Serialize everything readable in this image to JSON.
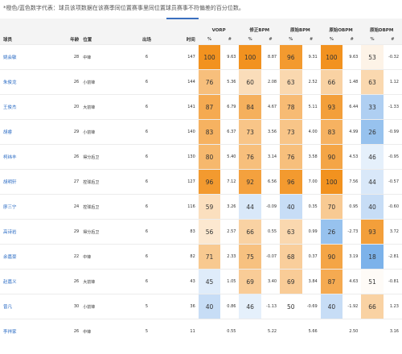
{
  "note": "*橙色/蓝色数字代表：球员该项数据在该赛季同位置赛事里同位置球员赛事不符偏差的百分位数。",
  "headers": {
    "player": "球员",
    "age": "年龄",
    "position": "位置",
    "games": "出场",
    "minutes": "时间",
    "vorp": "VORP",
    "bpm": "修正BPM",
    "obpm": "原始BPM",
    "dbpm": "原始OBPM",
    "raw_dbpm": "原始DBPM",
    "pct": "%",
    "num": "#"
  },
  "colors": {
    "orange_strong": "#f2921f",
    "orange_light": "#fbe2c4",
    "blue_strong": "#3f8fe0",
    "blue_light": "#cfe2f7",
    "header_accent": "#3a6fbf",
    "name_link": "#2a6bc4"
  },
  "rows": [
    {
      "name": "姚会敏",
      "age": "28",
      "pos": "中锋",
      "g": "6",
      "min": "147",
      "vorp_p": "100",
      "vorp_v": "9.63",
      "bpm_p": "100",
      "bpm_v": "8.87",
      "obpm_p": "96",
      "obpm_v": "9.31",
      "dbpm_p": "100",
      "dbpm_v": "9.63",
      "rd_p": "53",
      "rd_v": "-0.32"
    },
    {
      "name": "朱俊龙",
      "age": "26",
      "pos": "小前锋",
      "g": "6",
      "min": "144",
      "vorp_p": "76",
      "vorp_v": "5.36",
      "bpm_p": "60",
      "bpm_v": "2.08",
      "obpm_p": "63",
      "obpm_v": "2.52",
      "dbpm_p": "66",
      "dbpm_v": "1.48",
      "rd_p": "63",
      "rd_v": "1.12"
    },
    {
      "name": "王俊杰",
      "age": "20",
      "pos": "大前锋",
      "g": "6",
      "min": "141",
      "vorp_p": "87",
      "vorp_v": "6.79",
      "bpm_p": "84",
      "bpm_v": "4.67",
      "obpm_p": "78",
      "obpm_v": "5.11",
      "dbpm_p": "93",
      "dbpm_v": "6.44",
      "rd_p": "33",
      "rd_v": "-1.33"
    },
    {
      "name": "胡睿",
      "age": "29",
      "pos": "小前锋",
      "g": "6",
      "min": "140",
      "vorp_p": "83",
      "vorp_v": "6.37",
      "bpm_p": "73",
      "bpm_v": "3.56",
      "obpm_p": "73",
      "obpm_v": "4.00",
      "dbpm_p": "83",
      "dbpm_v": "4.99",
      "rd_p": "26",
      "rd_v": "-0.99"
    },
    {
      "name": "柯纬丰",
      "age": "26",
      "pos": "得分后卫",
      "g": "6",
      "min": "130",
      "vorp_p": "80",
      "vorp_v": "5.40",
      "bpm_p": "76",
      "bpm_v": "3.14",
      "obpm_p": "76",
      "obpm_v": "3.58",
      "dbpm_p": "90",
      "dbpm_v": "4.53",
      "rd_p": "46",
      "rd_v": "-0.95"
    },
    {
      "name": "胡明轩",
      "age": "27",
      "pos": "控球后卫",
      "g": "6",
      "min": "127",
      "vorp_p": "96",
      "vorp_v": "7.12",
      "bpm_p": "92",
      "bpm_v": "6.56",
      "obpm_p": "96",
      "obpm_v": "7.00",
      "dbpm_p": "100",
      "dbpm_v": "7.56",
      "rd_p": "44",
      "rd_v": "-0.57"
    },
    {
      "name": "廖三宁",
      "age": "24",
      "pos": "控球后卫",
      "g": "6",
      "min": "116",
      "vorp_p": "59",
      "vorp_v": "3.26",
      "bpm_p": "44",
      "bpm_v": "-0.09",
      "obpm_p": "40",
      "obpm_v": "0.35",
      "dbpm_p": "70",
      "dbpm_v": "0.95",
      "rd_p": "40",
      "rd_v": "-0.60"
    },
    {
      "name": "高诗岩",
      "age": "29",
      "pos": "得分后卫",
      "g": "6",
      "min": "83",
      "vorp_p": "56",
      "vorp_v": "2.57",
      "bpm_p": "66",
      "bpm_v": "0.55",
      "obpm_p": "63",
      "obpm_v": "0.99",
      "dbpm_p": "26",
      "dbpm_v": "-2.73",
      "rd_p": "93",
      "rd_v": "3.72"
    },
    {
      "name": "余嘉豪",
      "age": "22",
      "pos": "中锋",
      "g": "6",
      "min": "82",
      "vorp_p": "71",
      "vorp_v": "2.33",
      "bpm_p": "75",
      "bpm_v": "-0.07",
      "obpm_p": "68",
      "obpm_v": "0.37",
      "dbpm_p": "90",
      "dbpm_v": "3.19",
      "rd_p": "18",
      "rd_v": "-2.81"
    },
    {
      "name": "赵嘉义",
      "age": "26",
      "pos": "大前锋",
      "g": "6",
      "min": "43",
      "vorp_p": "45",
      "vorp_v": "1.05",
      "bpm_p": "69",
      "bpm_v": "3.40",
      "obpm_p": "69",
      "obpm_v": "3.84",
      "dbpm_p": "87",
      "dbpm_v": "4.63",
      "rd_p": "51",
      "rd_v": "-0.81"
    },
    {
      "name": "曾凡",
      "age": "30",
      "pos": "小前锋",
      "g": "5",
      "min": "36",
      "vorp_p": "40",
      "vorp_v": "0.86",
      "bpm_p": "46",
      "bpm_v": "-1.13",
      "obpm_p": "50",
      "obpm_v": "-0.69",
      "dbpm_p": "40",
      "dbpm_v": "-1.92",
      "rd_p": "66",
      "rd_v": "1.23"
    },
    {
      "name": "李祥家",
      "age": "26",
      "pos": "中锋",
      "g": "5",
      "min": "11",
      "vorp_p": "",
      "vorp_v": "0.55",
      "bpm_p": "",
      "bpm_v": "5.22",
      "obpm_p": "",
      "obpm_v": "5.66",
      "dbpm_p": "",
      "dbpm_v": "2.50",
      "rd_p": "",
      "rd_v": "3.16"
    }
  ]
}
